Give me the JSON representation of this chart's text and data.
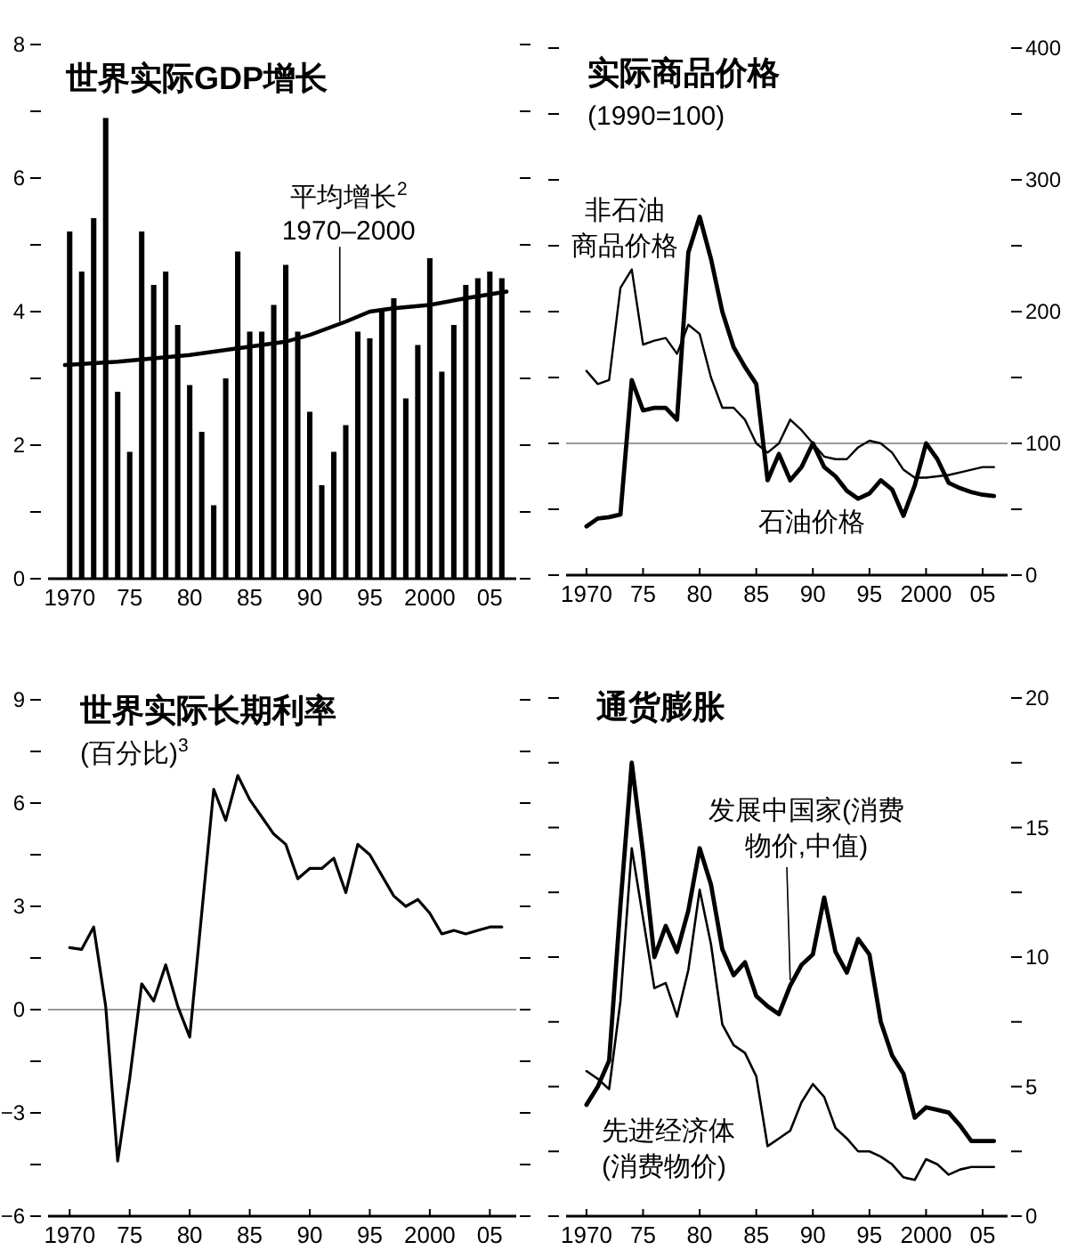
{
  "chart_data": [
    {
      "type": "bar",
      "title": "世界实际GDP增长",
      "x": [
        1970,
        1971,
        1972,
        1973,
        1974,
        1975,
        1976,
        1977,
        1978,
        1979,
        1980,
        1981,
        1982,
        1983,
        1984,
        1985,
        1986,
        1987,
        1988,
        1989,
        1990,
        1991,
        1992,
        1993,
        1994,
        1995,
        1996,
        1997,
        1998,
        1999,
        2000,
        2001,
        2002,
        2003,
        2004,
        2005,
        2006
      ],
      "xlim": [
        1968.2,
        2007.2
      ],
      "xticks": [
        {
          "value": 1970,
          "label": "1970"
        },
        {
          "value": 1975,
          "label": "75"
        },
        {
          "value": 1980,
          "label": "80"
        },
        {
          "value": 1985,
          "label": "85"
        },
        {
          "value": 1990,
          "label": "90"
        },
        {
          "value": 1995,
          "label": "95"
        },
        {
          "value": 2000,
          "label": "2000"
        },
        {
          "value": 2005,
          "label": "05"
        }
      ],
      "ylim": [
        0,
        8
      ],
      "yticks": [
        0,
        {
          "value": 1,
          "label": null
        },
        2,
        {
          "value": 3,
          "label": null
        },
        4,
        {
          "value": 5,
          "label": null
        },
        6,
        {
          "value": 7,
          "label": null
        },
        8
      ],
      "series": [
        {
          "type": "bar",
          "color": "#000000",
          "values": [
            5.2,
            4.6,
            5.4,
            6.9,
            2.8,
            1.9,
            5.2,
            4.4,
            4.6,
            3.8,
            2.9,
            2.2,
            1.1,
            3.0,
            4.9,
            3.7,
            3.7,
            4.1,
            4.7,
            3.7,
            2.5,
            1.4,
            1.9,
            2.3,
            3.7,
            3.6,
            4.0,
            4.2,
            2.7,
            3.5,
            4.8,
            3.1,
            3.8,
            4.4,
            4.5,
            4.6,
            4.5
          ]
        },
        {
          "type": "line",
          "color": "#000000",
          "x": [
            1969.6,
            1974,
            1977,
            1980,
            1984,
            1988,
            1990,
            1993,
            1995,
            1997,
            2000,
            2003,
            2006.4
          ],
          "values": [
            3.2,
            3.25,
            3.3,
            3.35,
            3.45,
            3.55,
            3.65,
            3.85,
            4.0,
            4.05,
            4.1,
            4.2,
            4.3
          ]
        }
      ],
      "annotations": [
        {
          "text": "平均增长$^{2}$\n1970–2000",
          "x": 1992.5,
          "y": 3.85
        }
      ]
    },
    {
      "type": "line",
      "title": "实际商品价格",
      "subtitle": "(1990=100)",
      "x": [
        1970,
        1971,
        1972,
        1973,
        1974,
        1975,
        1976,
        1977,
        1978,
        1979,
        1980,
        1981,
        1982,
        1983,
        1984,
        1985,
        1986,
        1987,
        1988,
        1989,
        1990,
        1991,
        1992,
        1993,
        1994,
        1995,
        1996,
        1997,
        1998,
        1999,
        2000,
        2001,
        2002,
        2003,
        2004,
        2005,
        2006
      ],
      "xlim": [
        1968.2,
        2007.2
      ],
      "xticks": [
        {
          "value": 1970,
          "label": "1970"
        },
        {
          "value": 1975,
          "label": "75"
        },
        {
          "value": 1980,
          "label": "80"
        },
        {
          "value": 1985,
          "label": "85"
        },
        {
          "value": 1990,
          "label": "90"
        },
        {
          "value": 1995,
          "label": "95"
        },
        {
          "value": 2000,
          "label": "2000"
        },
        {
          "value": 2005,
          "label": "05"
        }
      ],
      "y2lim": [
        0,
        400
      ],
      "y2ticks": [
        0,
        {
          "value": 50,
          "label": null
        },
        100,
        {
          "value": 150,
          "label": null
        },
        200,
        {
          "value": 250,
          "label": null
        },
        300,
        {
          "value": 350,
          "label": null
        },
        400
      ],
      "series": [
        {
          "name": "非石油商品价格",
          "axis": "y2",
          "color": "#000000",
          "values": [
            155,
            145,
            148,
            218,
            232,
            175,
            178,
            180,
            168,
            190,
            183,
            150,
            127,
            127,
            118,
            100,
            93,
            100,
            118,
            110,
            100,
            90,
            88,
            88,
            97,
            102,
            100,
            93,
            80,
            74,
            74,
            75,
            76,
            78,
            80,
            82,
            82
          ]
        },
        {
          "name": "石油价格",
          "axis": "y2",
          "color": "#000000",
          "values": [
            37,
            43,
            44,
            46,
            148,
            125,
            127,
            127,
            118,
            245,
            272,
            240,
            200,
            173,
            158,
            145,
            72,
            92,
            72,
            82,
            100,
            82,
            75,
            64,
            58,
            62,
            72,
            65,
            45,
            68,
            100,
            88,
            70,
            66,
            63,
            61,
            60
          ]
        }
      ],
      "ref_lines": [
        {
          "axis": "y2",
          "value": 100,
          "color": "#999999"
        }
      ]
    },
    {
      "type": "line",
      "title": "世界实际长期利率",
      "subtitle": "(百分比)$^{3}$",
      "x": [
        1970,
        1971,
        1972,
        1973,
        1974,
        1975,
        1976,
        1977,
        1978,
        1979,
        1980,
        1981,
        1982,
        1983,
        1984,
        1985,
        1986,
        1987,
        1988,
        1989,
        1990,
        1991,
        1992,
        1993,
        1994,
        1995,
        1996,
        1997,
        1998,
        1999,
        2000,
        2001,
        2002,
        2003,
        2004,
        2005,
        2006
      ],
      "xlim": [
        1968.2,
        2007.2
      ],
      "xticks": [
        {
          "value": 1970,
          "label": "1970"
        },
        {
          "value": 1975,
          "label": "75"
        },
        {
          "value": 1980,
          "label": "80"
        },
        {
          "value": 1985,
          "label": "85"
        },
        {
          "value": 1990,
          "label": "90"
        },
        {
          "value": 1995,
          "label": "95"
        },
        {
          "value": 2000,
          "label": "2000"
        },
        {
          "value": 2005,
          "label": "05"
        }
      ],
      "ylim": [
        -6,
        9
      ],
      "yticks": [
        {
          "value": -6,
          "label": "−6"
        },
        {
          "value": -4.5,
          "label": null
        },
        {
          "value": -3,
          "label": "−3"
        },
        {
          "value": -1.5,
          "label": null
        },
        0,
        {
          "value": 1.5,
          "label": null
        },
        3,
        {
          "value": 4.5,
          "label": null
        },
        6,
        {
          "value": 7.5,
          "label": null
        },
        9
      ],
      "series": [
        {
          "color": "#000000",
          "values": [
            1.8,
            1.75,
            2.4,
            0.1,
            -4.4,
            -2.0,
            0.75,
            0.25,
            1.3,
            0.1,
            -0.8,
            2.8,
            6.4,
            5.5,
            6.8,
            6.1,
            5.6,
            5.1,
            4.8,
            3.8,
            4.1,
            4.1,
            4.4,
            3.4,
            4.8,
            4.5,
            3.9,
            3.3,
            3.0,
            3.2,
            2.8,
            2.2,
            2.3,
            2.2,
            2.3,
            2.4,
            2.4
          ]
        }
      ],
      "ref_lines": [
        {
          "axis": "y",
          "value": 0,
          "color": "#999999"
        }
      ]
    },
    {
      "type": "line",
      "title": "通货膨胀",
      "x": [
        1970,
        1971,
        1972,
        1973,
        1974,
        1975,
        1976,
        1977,
        1978,
        1979,
        1980,
        1981,
        1982,
        1983,
        1984,
        1985,
        1986,
        1987,
        1988,
        1989,
        1990,
        1991,
        1992,
        1993,
        1994,
        1995,
        1996,
        1997,
        1998,
        1999,
        2000,
        2001,
        2002,
        2003,
        2004,
        2005,
        2006
      ],
      "xlim": [
        1968.2,
        2007.2
      ],
      "xticks": [
        {
          "value": 1970,
          "label": "1970"
        },
        {
          "value": 1975,
          "label": "75"
        },
        {
          "value": 1980,
          "label": "80"
        },
        {
          "value": 1985,
          "label": "85"
        },
        {
          "value": 1990,
          "label": "90"
        },
        {
          "value": 1995,
          "label": "95"
        },
        {
          "value": 2000,
          "label": "2000"
        },
        {
          "value": 2005,
          "label": "05"
        }
      ],
      "y2lim": [
        0,
        20
      ],
      "y2ticks": [
        0,
        {
          "value": 2.5,
          "label": null
        },
        5,
        {
          "value": 7.5,
          "label": null
        },
        10,
        {
          "value": 12.5,
          "label": null
        },
        15,
        {
          "value": 17.5,
          "label": null
        },
        20
      ],
      "series": [
        {
          "name": "发展中国家(消费物价,中值)",
          "axis": "y2",
          "color": "#000000",
          "values": [
            4.3,
            5.0,
            6.0,
            12,
            17.5,
            14,
            10,
            11.2,
            10.2,
            11.8,
            14.2,
            12.8,
            10.3,
            9.3,
            9.8,
            8.5,
            8.1,
            7.8,
            8.9,
            9.7,
            10.1,
            12.3,
            10.2,
            9.4,
            10.7,
            10.1,
            7.5,
            6.2,
            5.5,
            3.8,
            4.2,
            4.1,
            4.0,
            3.5,
            2.9,
            2.9,
            2.9
          ]
        },
        {
          "name": "先进经济体(消费物价)",
          "axis": "y2",
          "color": "#000000",
          "values": [
            5.6,
            5.3,
            4.9,
            8.3,
            14.2,
            11.5,
            8.8,
            9.0,
            7.7,
            9.5,
            12.6,
            10.5,
            7.4,
            6.6,
            6.3,
            5.4,
            2.7,
            3.0,
            3.3,
            4.4,
            5.1,
            4.6,
            3.4,
            3.0,
            2.5,
            2.5,
            2.3,
            2.0,
            1.5,
            1.4,
            2.2,
            2.0,
            1.6,
            1.8,
            1.9,
            1.9,
            1.9
          ]
        }
      ]
    }
  ]
}
